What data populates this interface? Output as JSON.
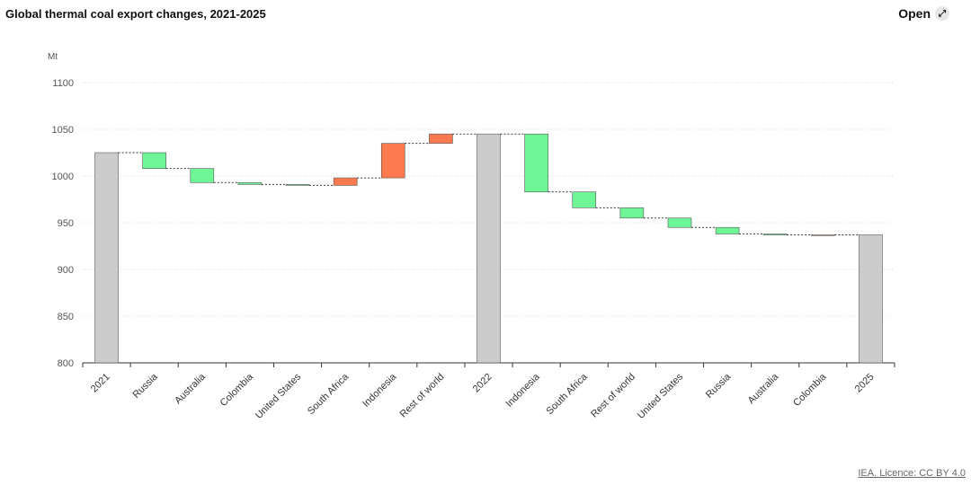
{
  "header": {
    "title": "Global thermal coal export changes, 2021-2025",
    "button": "Open"
  },
  "chart_data": {
    "type": "waterfall",
    "y_label": "Mt",
    "categories": [
      "2021",
      "Russia",
      "Australia",
      "Colombia",
      "United States",
      "South Africa",
      "Indonesia",
      "Rest of world",
      "2022",
      "Indonesia",
      "South Africa",
      "Rest of world",
      "United States",
      "Russia",
      "Australia",
      "Colombia",
      "2025"
    ],
    "values": [
      1025,
      -17,
      -15,
      -2,
      -1,
      8,
      37,
      10,
      1045,
      -62,
      -17,
      -11,
      -10,
      -7,
      -1,
      0,
      937
    ],
    "totals": [
      true,
      false,
      false,
      false,
      false,
      false,
      false,
      false,
      true,
      false,
      false,
      false,
      false,
      false,
      false,
      false,
      true
    ],
    "total_color": "#cccccc",
    "increase_color": "#fd7a4e",
    "decrease_color": "#6ef596",
    "ylim": [
      800,
      1100
    ],
    "yticks": [
      800,
      850,
      900,
      950,
      1000,
      1050,
      1100
    ],
    "grid": true
  },
  "footer": {
    "source": "IEA. Licence: CC BY 4.0"
  }
}
